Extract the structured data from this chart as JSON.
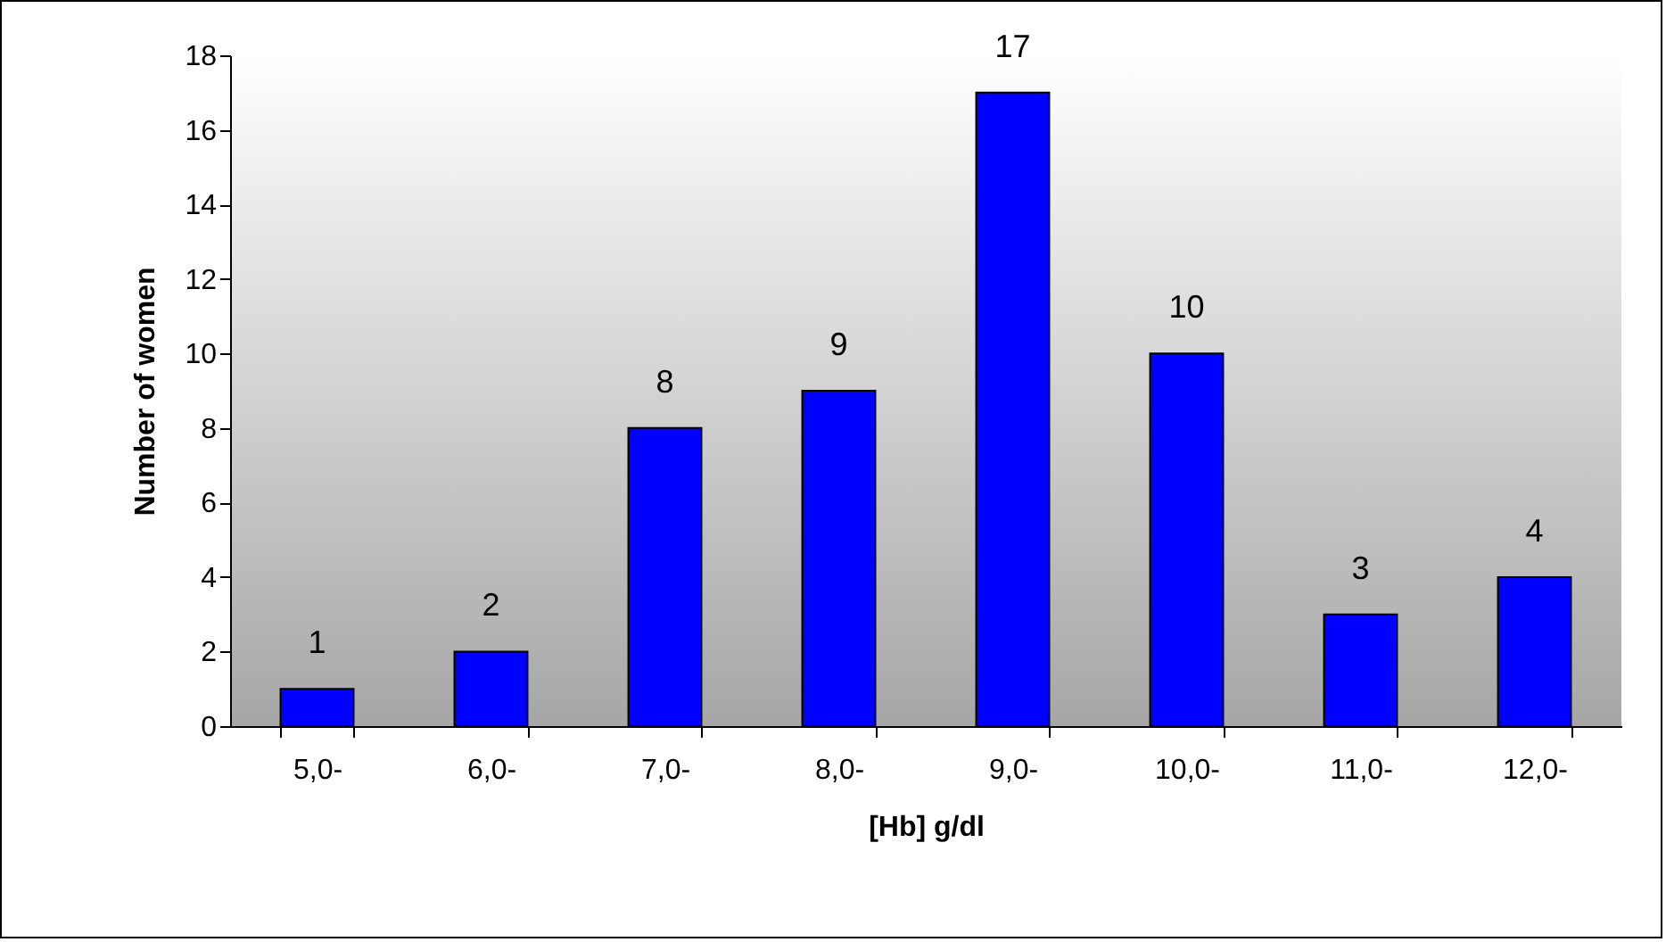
{
  "chart_data": {
    "type": "bar",
    "xlabel": "[Hb] g/dl",
    "ylabel": "Number of women",
    "categories": [
      "5,0-",
      "6,0-",
      "7,0-",
      "8,0-",
      "9,0-",
      "10,0-",
      "11,0-",
      "12,0-"
    ],
    "values": [
      1,
      2,
      8,
      9,
      17,
      10,
      3,
      4
    ],
    "color": "#0000ff",
    "ylim": [
      0,
      18
    ],
    "yticks": [
      0,
      2,
      4,
      6,
      8,
      10,
      12,
      14,
      16,
      18
    ],
    "grid": false,
    "data_labels": true
  }
}
